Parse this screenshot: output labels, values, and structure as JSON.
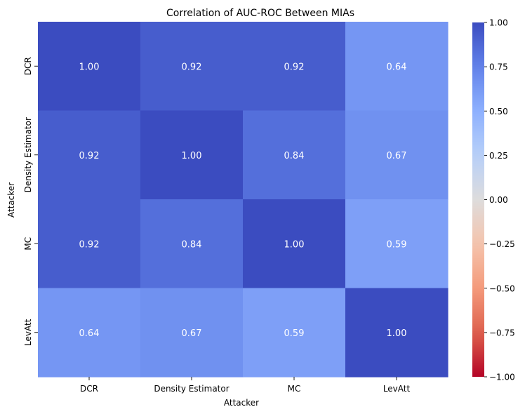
{
  "chart_data": {
    "type": "heatmap",
    "title": "Correlation of AUC-ROC Between MIAs",
    "xlabel": "Attacker",
    "ylabel": "Attacker",
    "x_categories": [
      "DCR",
      "Density Estimator",
      "MC",
      "LevAtt"
    ],
    "y_categories": [
      "DCR",
      "Density Estimator",
      "MC",
      "LevAtt"
    ],
    "values": [
      [
        1.0,
        0.92,
        0.92,
        0.64
      ],
      [
        0.92,
        1.0,
        0.84,
        0.67
      ],
      [
        0.92,
        0.84,
        1.0,
        0.59
      ],
      [
        0.64,
        0.67,
        0.59,
        1.0
      ]
    ],
    "value_format": "0.00",
    "colormap": "coolwarm",
    "vmin": -1.0,
    "vmax": 1.0,
    "colorbar_ticks": [
      1.0,
      0.75,
      0.5,
      0.25,
      0.0,
      -0.25,
      -0.5,
      -0.75,
      -1.0
    ],
    "colorbar_tick_labels": [
      "1.00",
      "0.75",
      "0.50",
      "0.25",
      "0.00",
      "−0.25",
      "−0.50",
      "−0.75",
      "−1.00"
    ]
  }
}
